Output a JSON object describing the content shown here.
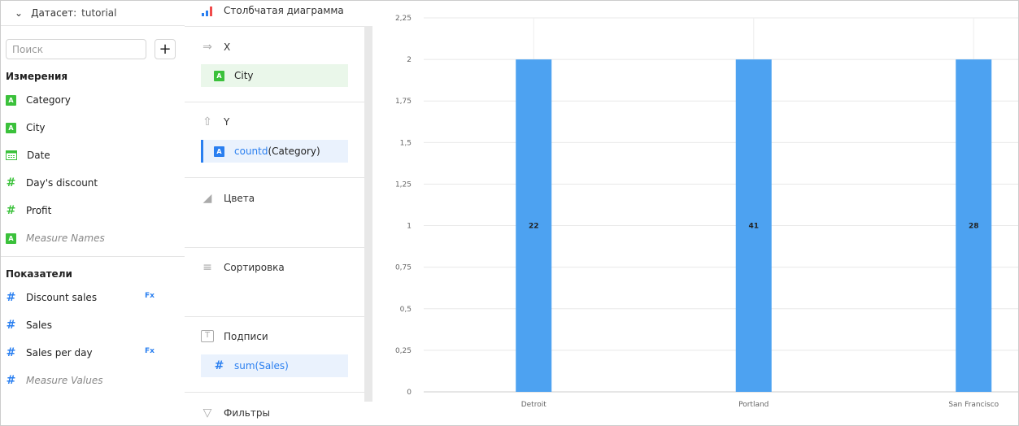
{
  "dataset": {
    "label": "Датасет:",
    "name": "tutorial"
  },
  "search": {
    "placeholder": "Поиск"
  },
  "add_label": "+",
  "dimensions": {
    "title": "Измерения",
    "items": [
      {
        "name": "Category",
        "type": "string"
      },
      {
        "name": "City",
        "type": "string"
      },
      {
        "name": "Date",
        "type": "date"
      },
      {
        "name": "Day's discount",
        "type": "number"
      },
      {
        "name": "Profit",
        "type": "number"
      },
      {
        "name": "Measure Names",
        "type": "string"
      }
    ]
  },
  "measures": {
    "title": "Показатели",
    "items": [
      {
        "name": "Discount sales",
        "formula": "Fx"
      },
      {
        "name": "Sales"
      },
      {
        "name": "Sales per day",
        "formula": "Fx"
      },
      {
        "name": "Measure Values"
      }
    ]
  },
  "chart_type": "Столбчатая диаграмма",
  "sections": {
    "x": {
      "title": "X",
      "field": "City"
    },
    "y": {
      "title": "Y",
      "func": "countd",
      "arg": "(Category)"
    },
    "colors": {
      "title": "Цвета"
    },
    "sort": {
      "title": "Сортировка"
    },
    "labels": {
      "title": "Подписи",
      "func": "sum",
      "arg": "(Sales)"
    },
    "filters": {
      "title": "Фильтры"
    }
  },
  "colors": {
    "bar": "#4da2f1",
    "accent": "#2a7ff0",
    "dimension": "#3bc13b"
  },
  "chart_data": {
    "type": "bar",
    "categories": [
      "Detroit",
      "Portland",
      "San Francisco"
    ],
    "values": [
      2,
      2,
      2
    ],
    "data_labels": [
      "22",
      "41",
      "28"
    ],
    "ylim": [
      0,
      2.25
    ],
    "yticks": [
      "0",
      "0,25",
      "0,5",
      "0,75",
      "1",
      "1,25",
      "1,5",
      "1,75",
      "2",
      "2,25"
    ],
    "grid": true
  }
}
